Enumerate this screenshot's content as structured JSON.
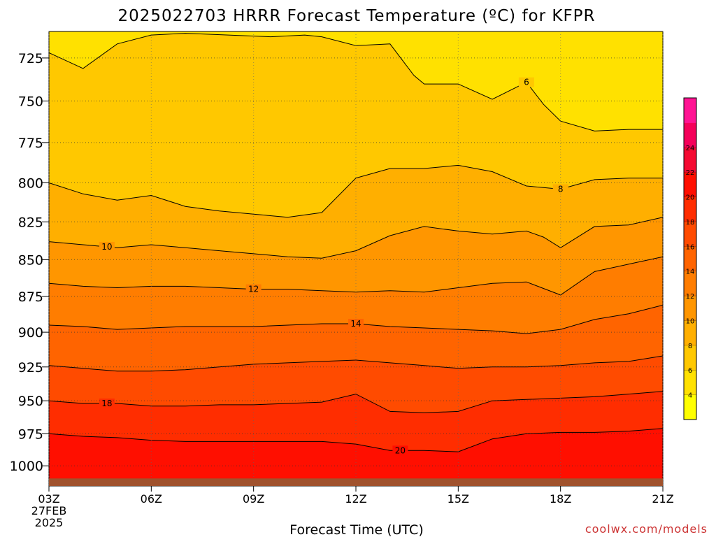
{
  "chart_data": {
    "type": "heatmap",
    "subtype": "filled-contour time-height section",
    "title": "2025022703 HRRR Forecast Temperature (ºC) for KFPR",
    "xlabel": "Forecast Time (UTC)",
    "ylabel": "",
    "x_ticks": [
      "03Z",
      "06Z",
      "09Z",
      "12Z",
      "15Z",
      "18Z",
      "21Z"
    ],
    "x_first_tick_extra": [
      "27FEB",
      "2025"
    ],
    "x_hours": [
      3,
      4,
      5,
      6,
      7,
      8,
      9,
      10,
      11,
      12,
      13,
      14,
      15,
      16,
      17,
      18,
      19,
      20,
      21
    ],
    "y_ticks": [
      725,
      750,
      775,
      800,
      825,
      850,
      875,
      900,
      925,
      950,
      975,
      1000
    ],
    "ylim_hpa": [
      1016,
      710
    ],
    "y_scale": "log-pressure",
    "grid": true,
    "ground_color": "#a0522d",
    "colorbar": {
      "position": "right",
      "tick_labels": [
        "4",
        "6",
        "8",
        "10",
        "12",
        "14",
        "16",
        "18",
        "20",
        "22",
        "24"
      ],
      "levels": [
        2,
        4,
        6,
        8,
        10,
        12,
        14,
        16,
        18,
        20,
        22,
        24,
        26
      ],
      "colors": [
        "#ffff00",
        "#ffe100",
        "#ffc800",
        "#ffaf00",
        "#ff9600",
        "#ff7d00",
        "#ff6400",
        "#ff4b00",
        "#ff2d00",
        "#ff0f00",
        "#f50a32",
        "#f5005a",
        "#ff1493"
      ]
    },
    "contours": [
      {
        "value": 6,
        "label": "6",
        "label_at": [
          17.0,
          747
        ],
        "points": [
          [
            3,
            722
          ],
          [
            4,
            731
          ],
          [
            5,
            717
          ],
          [
            6,
            712
          ],
          [
            7,
            711
          ],
          [
            9.5,
            713
          ],
          [
            10.5,
            712
          ],
          [
            11,
            713
          ],
          [
            12,
            718
          ],
          [
            13,
            717
          ],
          [
            13.7,
            735
          ],
          [
            14,
            740
          ],
          [
            15,
            740
          ],
          [
            16,
            749
          ],
          [
            17,
            739
          ],
          [
            17.5,
            752
          ],
          [
            18,
            762
          ],
          [
            19,
            768
          ],
          [
            20,
            767
          ],
          [
            21,
            767
          ]
        ]
      },
      {
        "value": 8,
        "label": "8",
        "label_at": [
          18.0,
          804
        ],
        "points": [
          [
            3,
            800
          ],
          [
            4,
            807
          ],
          [
            5,
            811
          ],
          [
            6,
            808
          ],
          [
            7,
            815
          ],
          [
            8,
            818
          ],
          [
            9,
            820
          ],
          [
            10,
            822
          ],
          [
            11,
            819
          ],
          [
            12,
            797
          ],
          [
            13,
            791
          ],
          [
            14,
            791
          ],
          [
            15,
            789
          ],
          [
            16,
            793
          ],
          [
            17,
            802
          ],
          [
            18,
            804
          ],
          [
            19,
            798
          ],
          [
            20,
            797
          ],
          [
            21,
            797
          ]
        ]
      },
      {
        "value": 10,
        "label": "10",
        "label_at": [
          4.7,
          842
        ],
        "points": [
          [
            3,
            838
          ],
          [
            4,
            840
          ],
          [
            5,
            842
          ],
          [
            6,
            840
          ],
          [
            7,
            842
          ],
          [
            8,
            844
          ],
          [
            9,
            846
          ],
          [
            10,
            848
          ],
          [
            11,
            849
          ],
          [
            12,
            844
          ],
          [
            13,
            834
          ],
          [
            14,
            828
          ],
          [
            15,
            831
          ],
          [
            16,
            833
          ],
          [
            17,
            831
          ],
          [
            17.5,
            835
          ],
          [
            18,
            842
          ],
          [
            19,
            828
          ],
          [
            20,
            827
          ],
          [
            21,
            822
          ]
        ]
      },
      {
        "value": 12,
        "label": "12",
        "label_at": [
          9.0,
          870
        ],
        "points": [
          [
            3,
            866
          ],
          [
            4,
            868
          ],
          [
            5,
            869
          ],
          [
            6,
            868
          ],
          [
            7,
            868
          ],
          [
            8,
            869
          ],
          [
            9,
            870
          ],
          [
            10,
            870
          ],
          [
            11,
            871
          ],
          [
            12,
            872
          ],
          [
            13,
            871
          ],
          [
            14,
            872
          ],
          [
            15,
            869
          ],
          [
            16,
            866
          ],
          [
            17,
            865
          ],
          [
            18,
            874
          ],
          [
            19,
            858
          ],
          [
            20,
            853
          ],
          [
            21,
            848
          ]
        ]
      },
      {
        "value": 14,
        "label": "14",
        "label_at": [
          12.0,
          894
        ],
        "points": [
          [
            3,
            895
          ],
          [
            4,
            896
          ],
          [
            5,
            898
          ],
          [
            6,
            897
          ],
          [
            7,
            896
          ],
          [
            8,
            896
          ],
          [
            9,
            896
          ],
          [
            10,
            895
          ],
          [
            11,
            894
          ],
          [
            12,
            894
          ],
          [
            13,
            896
          ],
          [
            14,
            897
          ],
          [
            15,
            898
          ],
          [
            16,
            899
          ],
          [
            17,
            901
          ],
          [
            18,
            898
          ],
          [
            19,
            891
          ],
          [
            20,
            887
          ],
          [
            21,
            881
          ]
        ]
      },
      {
        "value": 16,
        "label": "",
        "points": [
          [
            3,
            924
          ],
          [
            4,
            926
          ],
          [
            5,
            928
          ],
          [
            6,
            928
          ],
          [
            7,
            927
          ],
          [
            8,
            925
          ],
          [
            9,
            923
          ],
          [
            10,
            922
          ],
          [
            11,
            921
          ],
          [
            12,
            920
          ],
          [
            13,
            922
          ],
          [
            14,
            924
          ],
          [
            15,
            926
          ],
          [
            16,
            925
          ],
          [
            17,
            925
          ],
          [
            18,
            924
          ],
          [
            19,
            922
          ],
          [
            20,
            921
          ],
          [
            21,
            917
          ]
        ]
      },
      {
        "value": 18,
        "label": "18",
        "label_at": [
          4.7,
          952
        ],
        "points": [
          [
            3,
            950
          ],
          [
            4,
            952
          ],
          [
            5,
            952
          ],
          [
            6,
            954
          ],
          [
            7,
            954
          ],
          [
            8,
            953
          ],
          [
            9,
            953
          ],
          [
            10,
            952
          ],
          [
            11,
            951
          ],
          [
            12,
            945
          ],
          [
            13,
            958
          ],
          [
            14,
            959
          ],
          [
            15,
            958
          ],
          [
            16,
            950
          ],
          [
            17,
            949
          ],
          [
            18,
            948
          ],
          [
            19,
            947
          ],
          [
            20,
            945
          ],
          [
            21,
            943
          ]
        ]
      },
      {
        "value": 20,
        "label": "20",
        "label_at": [
          13.3,
          989
        ],
        "points": [
          [
            3,
            975
          ],
          [
            4,
            977
          ],
          [
            5,
            978
          ],
          [
            6,
            980
          ],
          [
            7,
            981
          ],
          [
            8,
            981
          ],
          [
            9,
            981
          ],
          [
            10,
            981
          ],
          [
            11,
            981
          ],
          [
            12,
            983
          ],
          [
            13,
            988
          ],
          [
            14,
            988
          ],
          [
            15,
            989
          ],
          [
            16,
            979
          ],
          [
            17,
            975
          ],
          [
            18,
            974
          ],
          [
            19,
            974
          ],
          [
            20,
            973
          ],
          [
            21,
            971
          ]
        ]
      }
    ]
  },
  "credit": "coolwx.com/models"
}
